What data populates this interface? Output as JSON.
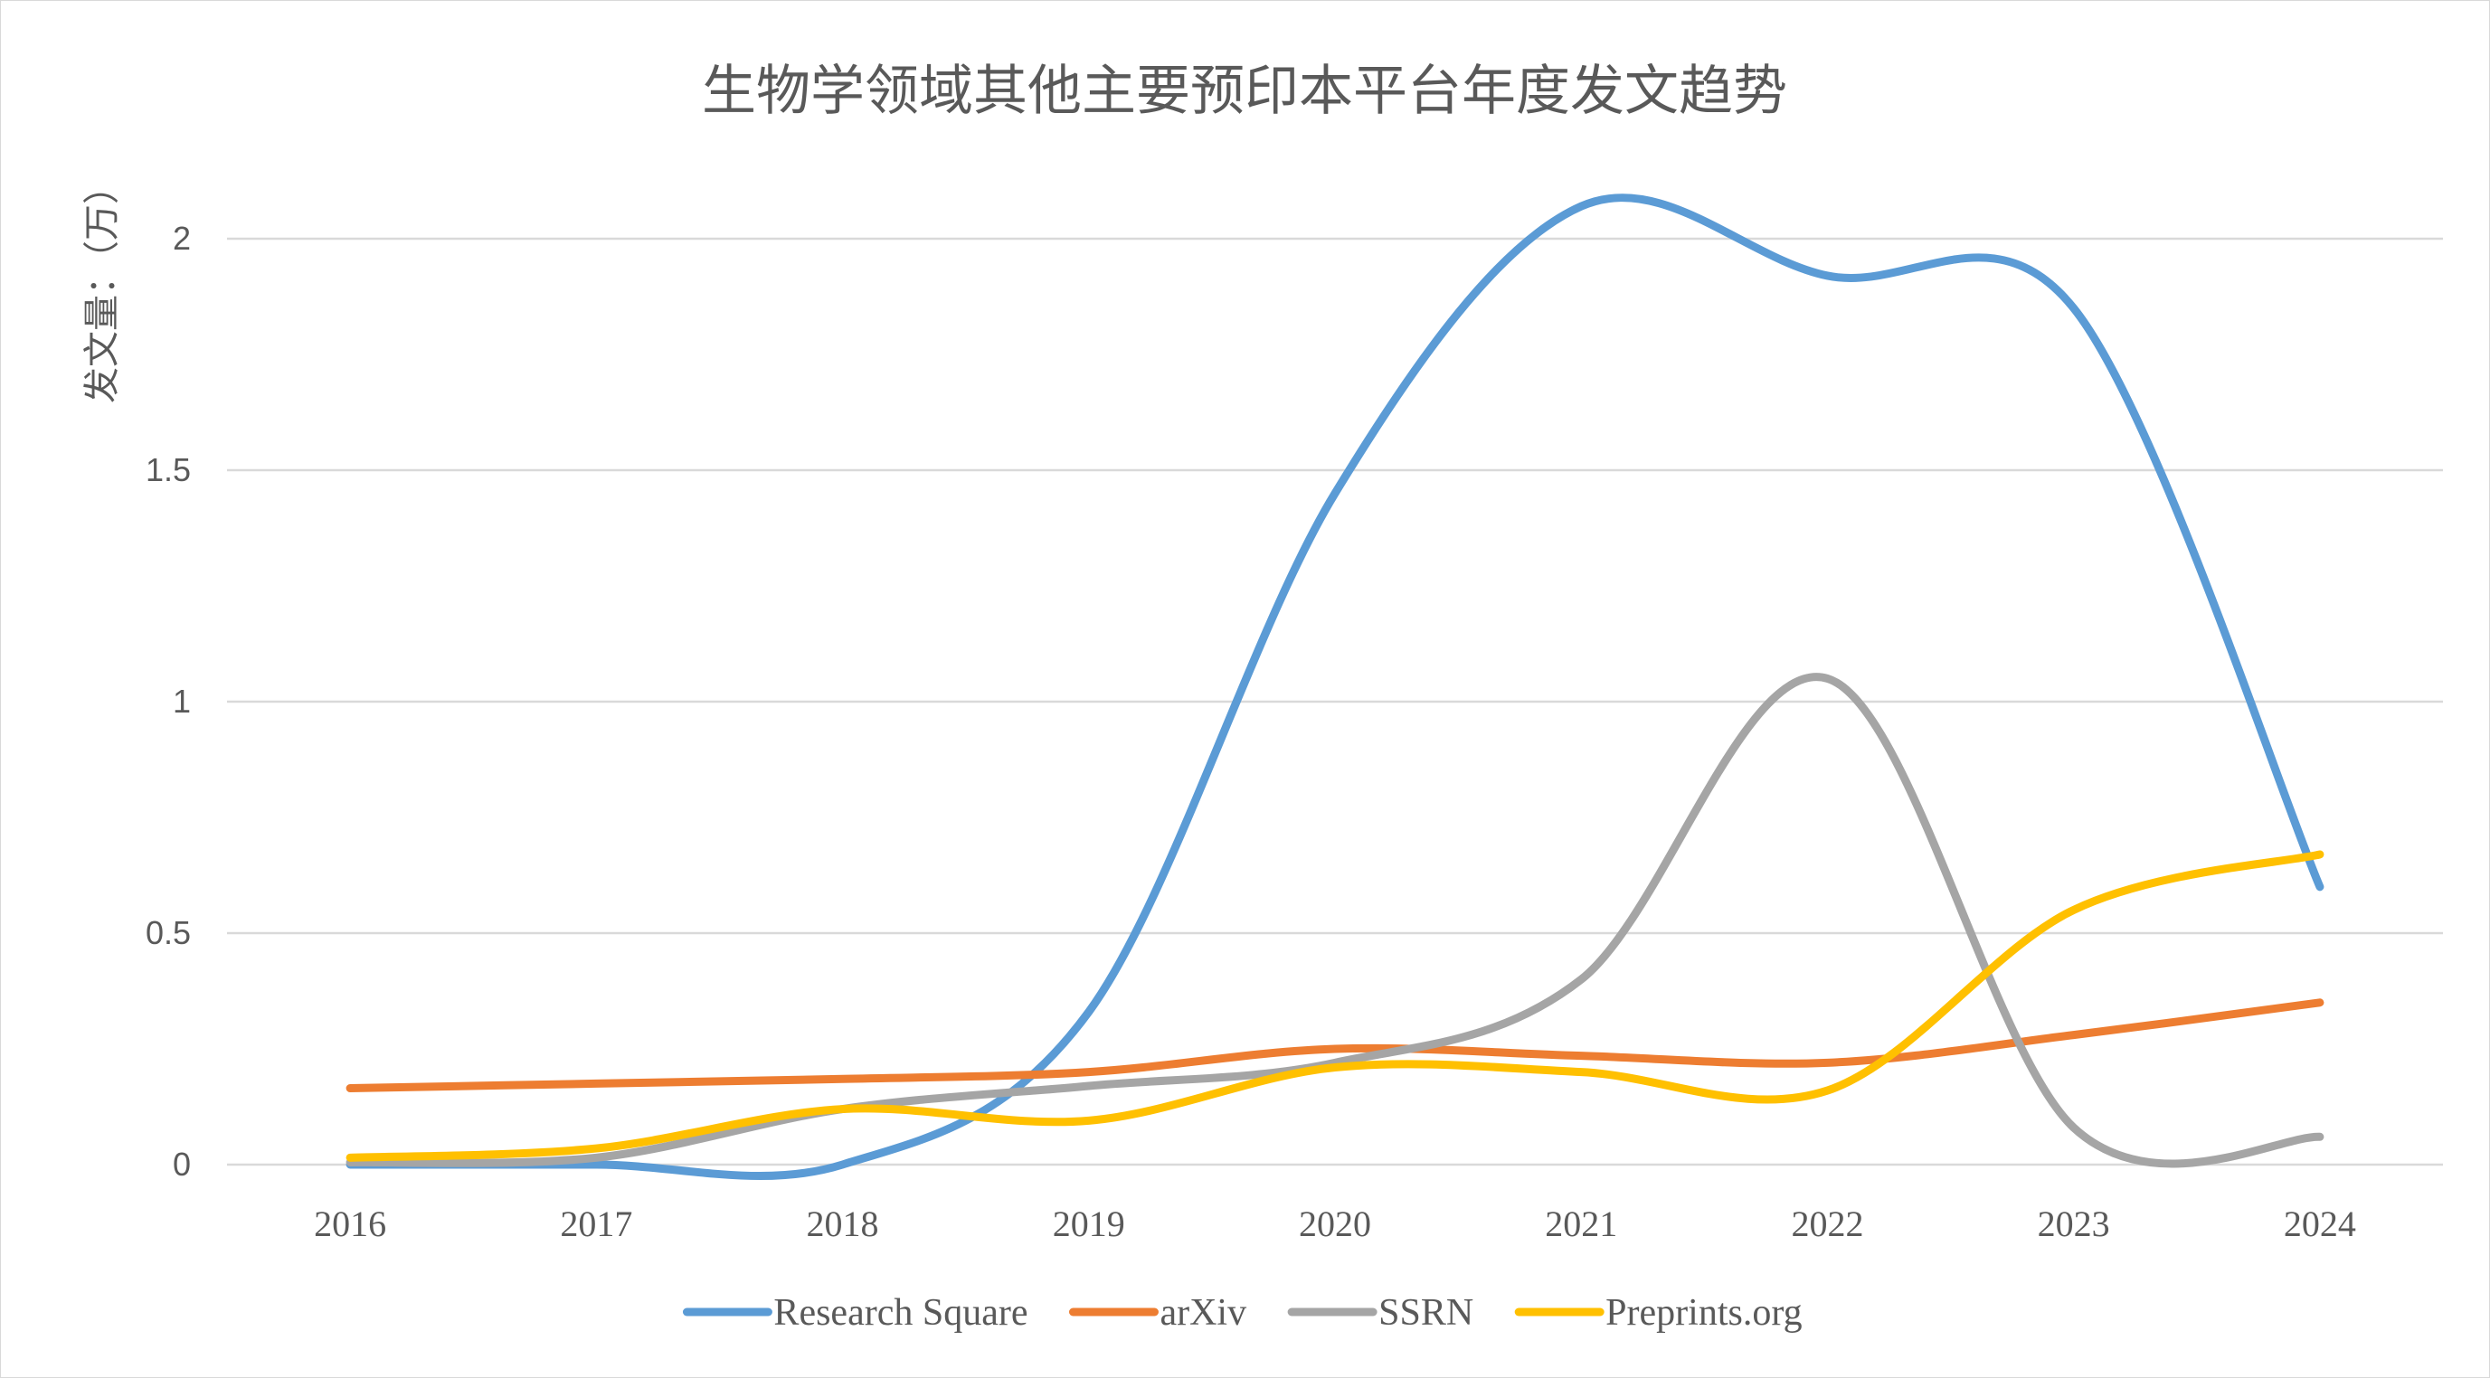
{
  "chart_data": {
    "type": "line",
    "smooth": true,
    "title": "生物学领域其他主要预印本平台年度发文趋势",
    "xlabel": "",
    "ylabel": "发文量：（万）",
    "categories": [
      "2016",
      "2017",
      "2018",
      "2019",
      "2020",
      "2021",
      "2022",
      "2023",
      "2024"
    ],
    "ylim": [
      0,
      2
    ],
    "yticks": [
      0,
      0.5,
      1,
      1.5,
      2
    ],
    "ytick_labels": [
      "0",
      "0.5",
      "1",
      "1.5",
      "2"
    ],
    "grid": true,
    "legend_position": "bottom",
    "series": [
      {
        "name": "Research Square",
        "color": "#5B9BD5",
        "values": [
          0.0,
          0.0,
          0.0,
          0.33,
          1.45,
          2.07,
          1.92,
          1.85,
          0.6
        ]
      },
      {
        "name": "arXiv",
        "color": "#ED7D31",
        "values": [
          0.165,
          0.175,
          0.185,
          0.2,
          0.25,
          0.235,
          0.22,
          0.28,
          0.35
        ]
      },
      {
        "name": "SSRN",
        "color": "#A5A5A5",
        "values": [
          0.005,
          0.015,
          0.12,
          0.17,
          0.22,
          0.4,
          1.05,
          0.08,
          0.06
        ]
      },
      {
        "name": "Preprints.org",
        "color": "#FFC000",
        "values": [
          0.015,
          0.035,
          0.12,
          0.095,
          0.21,
          0.2,
          0.16,
          0.55,
          0.67
        ]
      }
    ]
  }
}
